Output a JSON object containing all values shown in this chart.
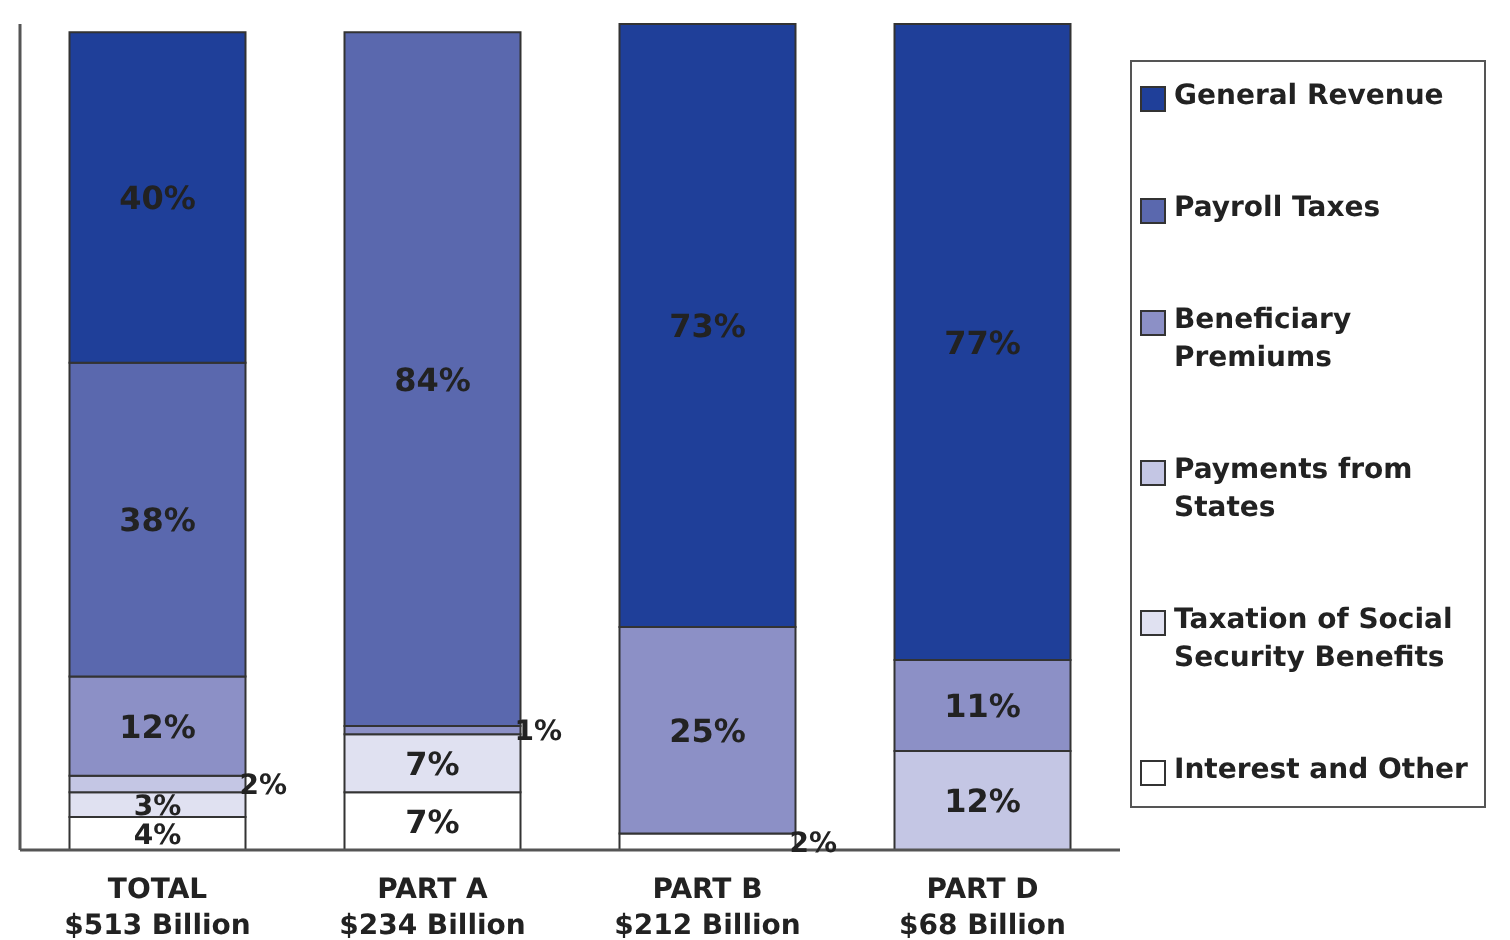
{
  "chart_data": {
    "type": "bar",
    "stacked": true,
    "legend": "right",
    "categories": [
      "TOTAL\n$513 Billion",
      "PART A\n$234 Billion",
      "PART B\n$212 Billion",
      "PART D\n$68 Billion"
    ],
    "series": [
      {
        "name": "Interest and Other",
        "color": "#ffffff",
        "values": [
          4,
          7,
          2,
          null
        ],
        "value_labels": [
          "4%",
          "7%",
          "2%",
          null
        ]
      },
      {
        "name": "Taxation of Social Security Benefits",
        "color": "#e0e1f1",
        "values": [
          3,
          7,
          null,
          null
        ],
        "value_labels": [
          "3%",
          "7%",
          null,
          null
        ]
      },
      {
        "name": "Payments from States",
        "color": "#c4c6e4",
        "values": [
          2,
          null,
          null,
          12
        ],
        "value_labels": [
          "2%",
          null,
          null,
          "12%"
        ]
      },
      {
        "name": "Beneficiary Premiums",
        "color": "#8c90c6",
        "values": [
          12,
          1,
          25,
          11
        ],
        "value_labels": [
          "12%",
          "1%",
          "25%",
          "11%"
        ]
      },
      {
        "name": "Payroll Taxes",
        "color": "#5a68ae",
        "values": [
          38,
          84,
          null,
          null
        ],
        "value_labels": [
          "38%",
          "84%",
          null,
          null
        ]
      },
      {
        "name": "General Revenue",
        "color": "#1f3f99",
        "values": [
          40,
          null,
          73,
          77
        ],
        "value_labels": [
          "40%",
          null,
          "73%",
          "77%"
        ]
      }
    ]
  }
}
